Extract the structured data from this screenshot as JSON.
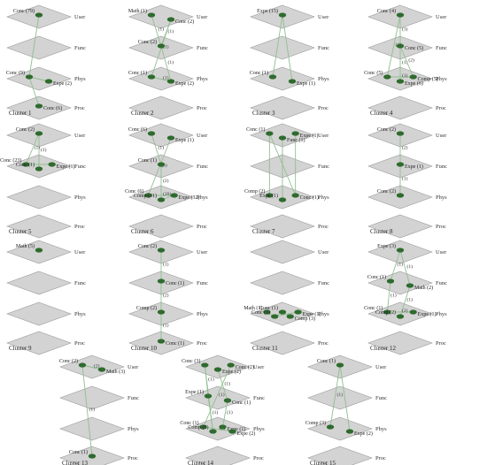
{
  "layer_names": [
    "User",
    "Func",
    "Phys",
    "Proc"
  ],
  "clusters": [
    {
      "title": "Cluster 1",
      "nodes": [
        {
          "label": "Conc (79)",
          "layer": 0
        },
        {
          "label": "Conc (9)",
          "layer": 2
        },
        {
          "label": "Expe (2)",
          "layer": 2
        },
        {
          "label": "Conc (6)",
          "layer": 3
        }
      ],
      "edges": [
        [
          0,
          1,
          ""
        ],
        [
          1,
          2,
          ""
        ],
        [
          1,
          3,
          ""
        ]
      ]
    },
    {
      "title": "Cluster 2",
      "nodes": [
        {
          "label": "Math (1)",
          "layer": 0
        },
        {
          "label": "Conc (2)",
          "layer": 0
        },
        {
          "label": "Conc (2)",
          "layer": 1
        },
        {
          "label": "Conc (1)",
          "layer": 2
        },
        {
          "label": "Expe (2)",
          "layer": 2
        }
      ],
      "edges": [
        [
          0,
          2,
          "(1)"
        ],
        [
          1,
          2,
          "(1)"
        ],
        [
          1,
          3,
          "(1)"
        ],
        [
          2,
          4,
          "(1)"
        ],
        [
          3,
          4,
          "(1)"
        ]
      ]
    },
    {
      "title": "Cluster 3",
      "nodes": [
        {
          "label": "Expe (15)",
          "layer": 0
        },
        {
          "label": "Conc (1)",
          "layer": 2
        },
        {
          "label": "Expe (1)",
          "layer": 2
        }
      ],
      "edges": [
        [
          0,
          1,
          ""
        ],
        [
          0,
          2,
          ""
        ]
      ]
    },
    {
      "title": "Cluster 4",
      "nodes": [
        {
          "label": "Conc (4)",
          "layer": 0
        },
        {
          "label": "Conc (5)",
          "layer": 1
        },
        {
          "label": "Conc (5)",
          "layer": 2
        },
        {
          "label": "Expe (6)",
          "layer": 2
        },
        {
          "label": "Comp (5)",
          "layer": 2
        }
      ],
      "edges": [
        [
          0,
          1,
          "(3)"
        ],
        [
          0,
          2,
          "(1)"
        ],
        [
          1,
          3,
          "(1)"
        ],
        [
          1,
          4,
          "(2)"
        ],
        [
          2,
          4,
          "(1)"
        ]
      ]
    },
    {
      "title": "Cluster 5",
      "nodes": [
        {
          "label": "Conc (2)",
          "layer": 0
        },
        {
          "label": "Conc (23)",
          "layer": 1
        },
        {
          "label": "Conc (1)",
          "layer": 1
        },
        {
          "label": "Expe (1)",
          "layer": 1
        }
      ],
      "edges": [
        [
          0,
          1,
          "(1)"
        ],
        [
          0,
          2,
          "(1)"
        ],
        [
          1,
          3,
          ""
        ]
      ]
    },
    {
      "title": "Cluster 6",
      "nodes": [
        {
          "label": "Conc (6)",
          "layer": 0
        },
        {
          "label": "Expe (1)",
          "layer": 0
        },
        {
          "label": "Conc (1)",
          "layer": 1
        },
        {
          "label": "Conc (6)",
          "layer": 2
        },
        {
          "label": "Comp (31)",
          "layer": 2
        },
        {
          "label": "Expe (32)",
          "layer": 2
        }
      ],
      "edges": [
        [
          0,
          2,
          "(1)"
        ],
        [
          1,
          3,
          "(5)"
        ],
        [
          2,
          4,
          "(2)"
        ],
        [
          3,
          5,
          "(20)"
        ],
        [
          4,
          5,
          ""
        ]
      ]
    },
    {
      "title": "Cluster 7",
      "nodes": [
        {
          "label": "Conc (1)",
          "layer": 0
        },
        {
          "label": "Func (1)",
          "layer": 0
        },
        {
          "label": "Expe (1)",
          "layer": 0
        },
        {
          "label": "Comp (2)",
          "layer": 2
        },
        {
          "label": "Expe (1)",
          "layer": 2
        },
        {
          "label": "Conc (1)",
          "layer": 2
        }
      ],
      "edges": [
        [
          0,
          3,
          ""
        ],
        [
          1,
          4,
          ""
        ],
        [
          2,
          5,
          ""
        ],
        [
          0,
          5,
          ""
        ]
      ]
    },
    {
      "title": "Cluster 8",
      "nodes": [
        {
          "label": "Conc (2)",
          "layer": 0
        },
        {
          "label": "Expe (1)",
          "layer": 1
        },
        {
          "label": "Conc (2)",
          "layer": 2
        }
      ],
      "edges": [
        [
          0,
          1,
          "(2)"
        ],
        [
          1,
          2,
          "(1)"
        ]
      ]
    },
    {
      "title": "Cluster 9",
      "nodes": [
        {
          "label": "Math (5)",
          "layer": 0
        }
      ],
      "edges": []
    },
    {
      "title": "Cluster 10",
      "nodes": [
        {
          "label": "Conc (2)",
          "layer": 0
        },
        {
          "label": "Conc (1)",
          "layer": 1
        },
        {
          "label": "Comp (2)",
          "layer": 2
        },
        {
          "label": "Conc (1)",
          "layer": 3
        }
      ],
      "edges": [
        [
          0,
          1,
          "(1)"
        ],
        [
          1,
          2,
          "(2)"
        ],
        [
          2,
          3,
          "(1)"
        ]
      ]
    },
    {
      "title": "Cluster 11",
      "nodes": [
        {
          "label": "Math (1)",
          "layer": 2
        },
        {
          "label": "Conc (3)",
          "layer": 2
        },
        {
          "label": "Conc (1)",
          "layer": 2
        },
        {
          "label": "Comp (3)",
          "layer": 2
        },
        {
          "label": "Expe (1)",
          "layer": 2
        }
      ],
      "edges": [
        [
          0,
          1,
          ""
        ],
        [
          1,
          2,
          ""
        ],
        [
          2,
          3,
          ""
        ],
        [
          1,
          4,
          ""
        ]
      ]
    },
    {
      "title": "Cluster 12",
      "nodes": [
        {
          "label": "Expe (3)",
          "layer": 0
        },
        {
          "label": "Conc (1)",
          "layer": 1
        },
        {
          "label": "Math (2)",
          "layer": 1
        },
        {
          "label": "Conc (1)",
          "layer": 2
        },
        {
          "label": "Comp (2)",
          "layer": 2
        },
        {
          "label": "Expe (1)",
          "layer": 2
        }
      ],
      "edges": [
        [
          0,
          1,
          "(1)"
        ],
        [
          0,
          2,
          "(1)"
        ],
        [
          1,
          3,
          "(1)"
        ],
        [
          2,
          4,
          "(1)"
        ],
        [
          3,
          5,
          "(2)"
        ]
      ]
    },
    {
      "title": "Cluster 13",
      "nodes": [
        {
          "label": "Conc (2)",
          "layer": 0
        },
        {
          "label": "Math (3)",
          "layer": 0
        },
        {
          "label": "Conc (1)",
          "layer": 3
        }
      ],
      "edges": [
        [
          0,
          1,
          "(2)"
        ],
        [
          0,
          2,
          "(1)"
        ]
      ]
    },
    {
      "title": "Cluster 14",
      "nodes": [
        {
          "label": "Conc (3)",
          "layer": 0
        },
        {
          "label": "Expe (2)",
          "layer": 0
        },
        {
          "label": "Conc (2)",
          "layer": 0
        },
        {
          "label": "Expe (1)",
          "layer": 1
        },
        {
          "label": "Conc (1)",
          "layer": 1
        },
        {
          "label": "Conc (1)",
          "layer": 2
        },
        {
          "label": "Comp (5)",
          "layer": 2
        },
        {
          "label": "Expe (1)",
          "layer": 2
        },
        {
          "label": "Expe (2)",
          "layer": 2
        }
      ],
      "edges": [
        [
          0,
          3,
          "(1)"
        ],
        [
          1,
          4,
          "(1)"
        ],
        [
          2,
          5,
          "(1)"
        ],
        [
          3,
          6,
          "(1)"
        ],
        [
          4,
          7,
          "(1)"
        ],
        [
          5,
          8,
          "(2)"
        ],
        [
          0,
          6,
          ""
        ]
      ]
    },
    {
      "title": "Cluster 15",
      "nodes": [
        {
          "label": "Conc (1)",
          "layer": 0
        },
        {
          "label": "Comp (3)",
          "layer": 2
        },
        {
          "label": "Expe (2)",
          "layer": 2
        }
      ],
      "edges": [
        [
          0,
          1,
          "(1)"
        ],
        [
          0,
          2,
          ""
        ]
      ]
    }
  ]
}
